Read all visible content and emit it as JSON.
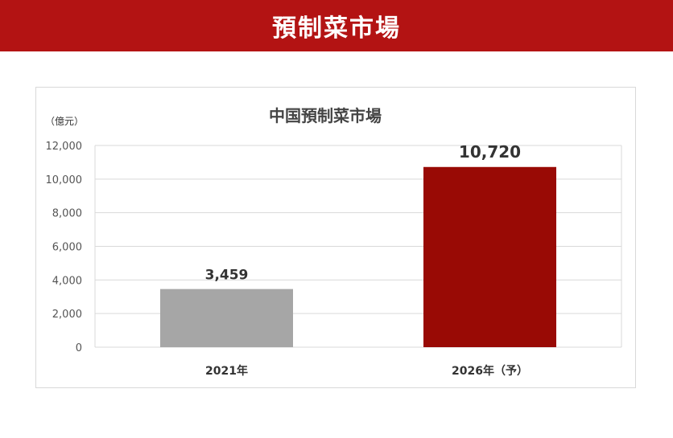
{
  "header": {
    "title": "預制菜市場"
  },
  "chart_data": {
    "type": "bar",
    "title": "中国預制菜市場",
    "ylabel": "（億元）",
    "xlabel": "",
    "categories": [
      "2021年",
      "2026年（予）"
    ],
    "values": [
      3459,
      10720
    ],
    "value_labels": [
      "3,459",
      "10,720"
    ],
    "bar_colors": [
      "#a6a6a6",
      "#990a05"
    ],
    "ylim": [
      0,
      12000
    ],
    "yticks": [
      0,
      2000,
      4000,
      6000,
      8000,
      10000,
      12000
    ],
    "ytick_labels": [
      "0",
      "2,000",
      "4,000",
      "6,000",
      "8,000",
      "10,000",
      "12,000"
    ],
    "grid": true,
    "legend": "none"
  },
  "colors": {
    "banner": "#b31313",
    "grid": "#d9d9d9"
  }
}
